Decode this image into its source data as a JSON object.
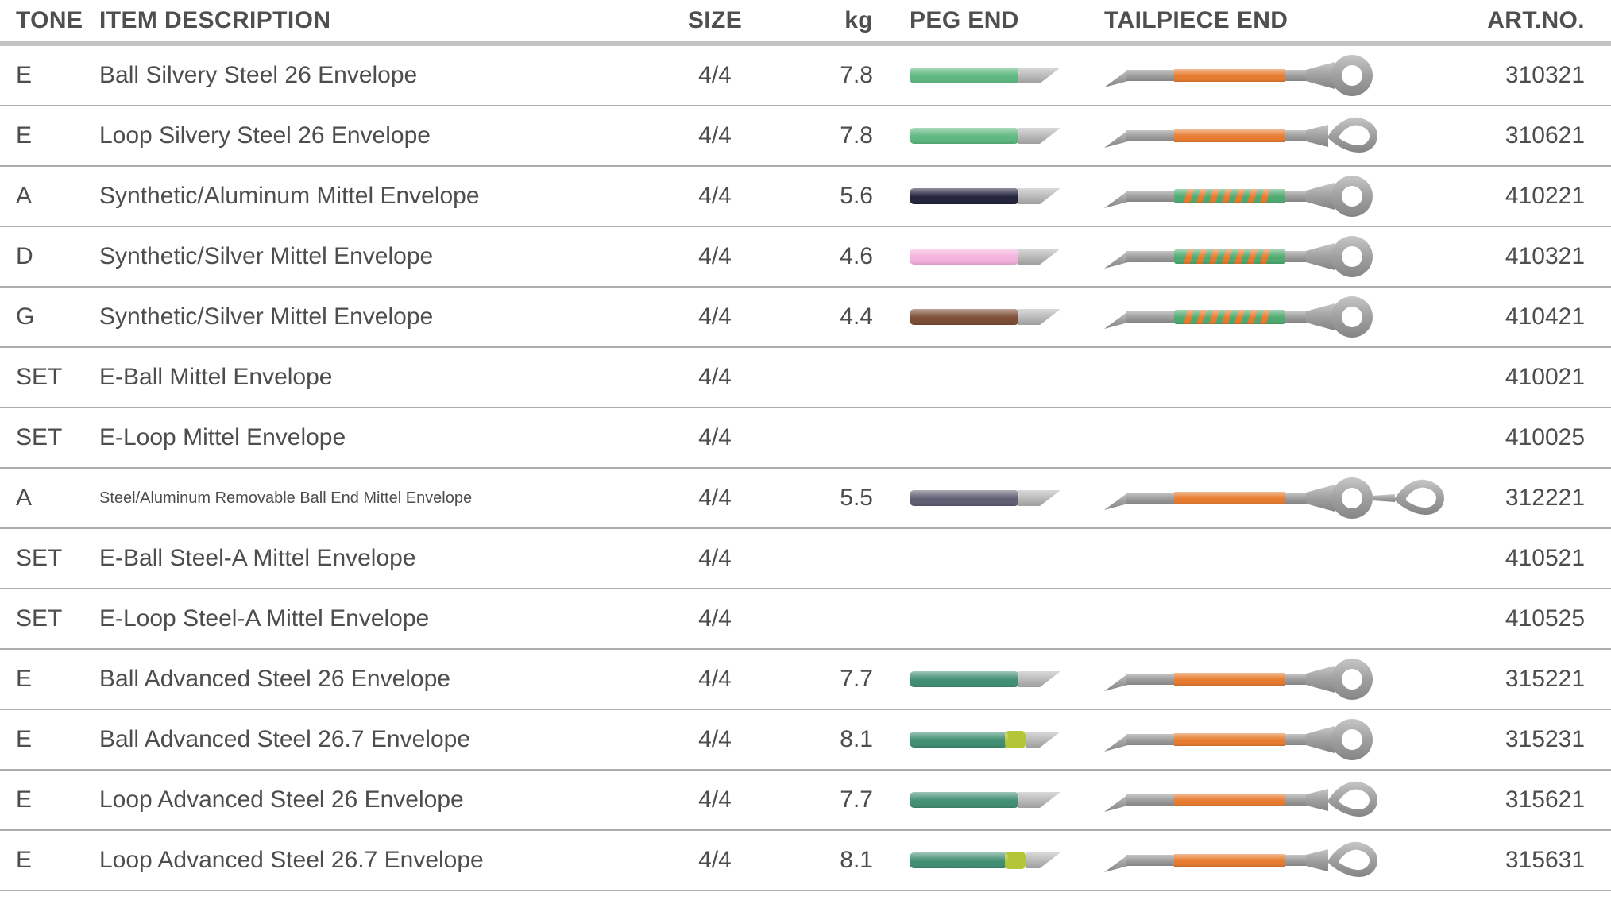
{
  "header": {
    "tone": "TONE",
    "description": "ITEM DESCRIPTION",
    "size": "SIZE",
    "kg": "kg",
    "peg_end": "PEG END",
    "tailpiece_end": "TAILPIECE END",
    "art_no": "ART.NO."
  },
  "colors": {
    "orange_band": "#e8792c",
    "spiral_green": "#4caa6e",
    "spiral_stripe_orange": "#e8792c",
    "tip_dot_yellow_green": "#b4c637",
    "silvery_steel_green": "#5cb77e",
    "advanced_steel_teal": "#3f8e72",
    "synthetic_aluminum_navy": "#20203a",
    "synthetic_silver_pink": "#f4b0dc",
    "synthetic_silver_brown": "#7b4a33",
    "steel_aluminum_slate": "#5c5b70",
    "string_metal_gray": "#9b9b9b"
  },
  "rows": [
    {
      "tone": "E",
      "description": "Ball Silvery Steel 26 Envelope",
      "size": "4/4",
      "kg": "7.8",
      "art_no": "310321",
      "small_text": false,
      "peg": {
        "icon": "peg-end-string",
        "color": "#5cb77e",
        "dot": false
      },
      "tail": {
        "icon": "tailpiece-end-string",
        "band": "orange",
        "end": "ball"
      }
    },
    {
      "tone": "E",
      "description": "Loop Silvery Steel 26 Envelope",
      "size": "4/4",
      "kg": "7.8",
      "art_no": "310621",
      "small_text": false,
      "peg": {
        "icon": "peg-end-string",
        "color": "#5cb77e",
        "dot": false
      },
      "tail": {
        "icon": "tailpiece-end-string",
        "band": "orange",
        "end": "loop"
      }
    },
    {
      "tone": "A",
      "description": "Synthetic/Aluminum Mittel Envelope",
      "size": "4/4",
      "kg": "5.6",
      "art_no": "410221",
      "small_text": false,
      "peg": {
        "icon": "peg-end-string",
        "color": "#20203a",
        "dot": false
      },
      "tail": {
        "icon": "tailpiece-end-string",
        "band": "spiral",
        "end": "ball"
      }
    },
    {
      "tone": "D",
      "description": "Synthetic/Silver Mittel Envelope",
      "size": "4/4",
      "kg": "4.6",
      "art_no": "410321",
      "small_text": false,
      "peg": {
        "icon": "peg-end-string",
        "color": "#f4b0dc",
        "dot": false
      },
      "tail": {
        "icon": "tailpiece-end-string",
        "band": "spiral",
        "end": "ball"
      }
    },
    {
      "tone": "G",
      "description": "Synthetic/Silver Mittel Envelope",
      "size": "4/4",
      "kg": "4.4",
      "art_no": "410421",
      "small_text": false,
      "peg": {
        "icon": "peg-end-string",
        "color": "#7b4a33",
        "dot": false
      },
      "tail": {
        "icon": "tailpiece-end-string",
        "band": "spiral",
        "end": "ball"
      }
    },
    {
      "tone": "SET",
      "description": "E-Ball Mittel Envelope",
      "size": "4/4",
      "kg": "",
      "art_no": "410021",
      "small_text": false,
      "peg": null,
      "tail": null
    },
    {
      "tone": "SET",
      "description": "E-Loop Mittel Envelope",
      "size": "4/4",
      "kg": "",
      "art_no": "410025",
      "small_text": false,
      "peg": null,
      "tail": null
    },
    {
      "tone": "A",
      "description": "Steel/Aluminum Removable Ball End Mittel Envelope",
      "size": "4/4",
      "kg": "5.5",
      "art_no": "312221",
      "small_text": true,
      "peg": {
        "icon": "peg-end-string",
        "color": "#5c5b70",
        "dot": false
      },
      "tail": {
        "icon": "tailpiece-end-string",
        "band": "orange",
        "end": "ball-loop"
      }
    },
    {
      "tone": "SET",
      "description": "E-Ball Steel-A Mittel Envelope",
      "size": "4/4",
      "kg": "",
      "art_no": "410521",
      "small_text": false,
      "peg": null,
      "tail": null
    },
    {
      "tone": "SET",
      "description": "E-Loop Steel-A Mittel Envelope",
      "size": "4/4",
      "kg": "",
      "art_no": "410525",
      "small_text": false,
      "peg": null,
      "tail": null
    },
    {
      "tone": "E",
      "description": "Ball Advanced Steel 26 Envelope",
      "size": "4/4",
      "kg": "7.7",
      "art_no": "315221",
      "small_text": false,
      "peg": {
        "icon": "peg-end-string",
        "color": "#3f8e72",
        "dot": false
      },
      "tail": {
        "icon": "tailpiece-end-string",
        "band": "orange",
        "end": "ball"
      }
    },
    {
      "tone": "E",
      "description": "Ball Advanced Steel 26.7 Envelope",
      "size": "4/4",
      "kg": "8.1",
      "art_no": "315231",
      "small_text": false,
      "peg": {
        "icon": "peg-end-string",
        "color": "#3f8e72",
        "dot": true
      },
      "tail": {
        "icon": "tailpiece-end-string",
        "band": "orange",
        "end": "ball"
      }
    },
    {
      "tone": "E",
      "description": "Loop Advanced Steel 26 Envelope",
      "size": "4/4",
      "kg": "7.7",
      "art_no": "315621",
      "small_text": false,
      "peg": {
        "icon": "peg-end-string",
        "color": "#3f8e72",
        "dot": false
      },
      "tail": {
        "icon": "tailpiece-end-string",
        "band": "orange",
        "end": "loop"
      }
    },
    {
      "tone": "E",
      "description": "Loop Advanced Steel 26.7 Envelope",
      "size": "4/4",
      "kg": "8.1",
      "art_no": "315631",
      "small_text": false,
      "peg": {
        "icon": "peg-end-string",
        "color": "#3f8e72",
        "dot": true
      },
      "tail": {
        "icon": "tailpiece-end-string",
        "band": "orange",
        "end": "loop"
      }
    }
  ]
}
